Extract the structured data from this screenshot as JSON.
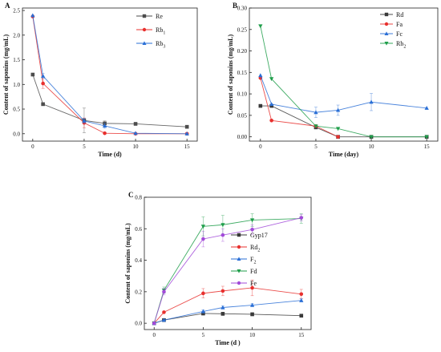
{
  "chart_data": [
    {
      "type": "line",
      "panel_label": "A",
      "xlabel": "Time (d)",
      "ylabel": "Content of saponins (mg/mL)",
      "xlim": [
        -1,
        16
      ],
      "ylim": [
        -0.15,
        2.55
      ],
      "xticks": [
        0,
        5,
        10,
        15
      ],
      "yticks": [
        0.0,
        0.5,
        1.0,
        1.5,
        2.0,
        2.5
      ],
      "ytick_labels": [
        "0.0",
        "0.5",
        "1.0",
        "1.5",
        "2.0",
        "2.5"
      ],
      "legend_position": "top-right",
      "series": [
        {
          "name": "Re",
          "legend_sub": "",
          "color": "#4d4d4d",
          "marker": "square",
          "x": [
            0,
            1,
            5,
            7,
            10,
            15
          ],
          "y": [
            1.2,
            0.6,
            0.27,
            0.21,
            0.2,
            0.14
          ],
          "err": [
            0,
            0,
            0.25,
            0.05,
            0,
            0
          ]
        },
        {
          "name": "Rb",
          "legend_sub": "1",
          "color": "#e8302e",
          "marker": "circle",
          "x": [
            0,
            1,
            5,
            7,
            10,
            15
          ],
          "y": [
            2.38,
            1.02,
            0.22,
            0.01,
            0.0,
            0.0
          ],
          "err": [
            0,
            0.1,
            0.1,
            0,
            0,
            0
          ]
        },
        {
          "name": "Rb",
          "legend_sub": "3",
          "color": "#2a6fd6",
          "marker": "triangle",
          "x": [
            0,
            1,
            5,
            7,
            10,
            15
          ],
          "y": [
            2.4,
            1.17,
            0.26,
            0.16,
            0.01,
            0.0
          ],
          "err": [
            0,
            0.05,
            0.05,
            0.05,
            0,
            0
          ]
        }
      ]
    },
    {
      "type": "line",
      "panel_label": "B",
      "xlabel": "Time (day)",
      "ylabel": "Content of saponins (mg/mL)",
      "xlim": [
        -1,
        16
      ],
      "ylim": [
        -0.01,
        0.3
      ],
      "xticks": [
        0,
        5,
        10,
        15
      ],
      "yticks": [
        0.0,
        0.05,
        0.1,
        0.15,
        0.2,
        0.25,
        0.3
      ],
      "ytick_labels": [
        "0.00",
        "0.05",
        "0.10",
        "0.15",
        "0.20",
        "0.25",
        "0.30"
      ],
      "legend_position": "top-right",
      "series": [
        {
          "name": "Rd",
          "legend_sub": "",
          "color": "#3a3a3a",
          "marker": "square",
          "x": [
            0,
            1,
            5,
            7,
            10,
            15
          ],
          "y": [
            0.072,
            0.072,
            0.022,
            0.0,
            0.0,
            0.0
          ],
          "err": [
            0,
            0,
            0,
            0,
            0,
            0
          ]
        },
        {
          "name": "Fa",
          "legend_sub": "",
          "color": "#e8302e",
          "marker": "circle",
          "x": [
            0,
            1,
            5,
            7
          ],
          "y": [
            0.137,
            0.038,
            0.025,
            0.0
          ],
          "err": [
            0,
            0,
            0,
            0
          ]
        },
        {
          "name": "Fc",
          "legend_sub": "",
          "color": "#2a6fd6",
          "marker": "triangle",
          "x": [
            0,
            1,
            5,
            7,
            10,
            15
          ],
          "y": [
            0.143,
            0.076,
            0.057,
            0.062,
            0.081,
            0.067
          ],
          "err": [
            0,
            0,
            0.012,
            0.012,
            0.02,
            0
          ]
        },
        {
          "name": "Rb",
          "legend_sub": "2",
          "color": "#1f9e4a",
          "marker": "triangle-down",
          "x": [
            0,
            1,
            5,
            7,
            10,
            15
          ],
          "y": [
            0.258,
            0.135,
            0.025,
            0.019,
            0.0,
            0.0
          ],
          "err": [
            0,
            0,
            0,
            0,
            0,
            0
          ]
        }
      ]
    },
    {
      "type": "line",
      "panel_label": "C",
      "xlabel": "Time (d )",
      "ylabel": "Content of saponins (mg/mL)",
      "xlim": [
        -1,
        16
      ],
      "ylim": [
        -0.04,
        0.8
      ],
      "xticks": [
        0,
        5,
        10,
        15
      ],
      "yticks": [
        0.0,
        0.2,
        0.4,
        0.6,
        0.8
      ],
      "ytick_labels": [
        "0.0",
        "0.2",
        "0.4",
        "0.6",
        "0.8"
      ],
      "legend_position": "center-right",
      "series": [
        {
          "name": "Gyp17",
          "legend_sub": "",
          "color": "#3a3a3a",
          "marker": "square",
          "x": [
            0,
            1,
            5,
            7,
            10,
            15
          ],
          "y": [
            0.0,
            0.02,
            0.062,
            0.06,
            0.057,
            0.048
          ],
          "err": [
            0,
            0,
            0.01,
            0.01,
            0.01,
            0.005
          ]
        },
        {
          "name": "Rd",
          "legend_sub": "2",
          "color": "#e8302e",
          "marker": "circle",
          "x": [
            0,
            1,
            5,
            7,
            10,
            15
          ],
          "y": [
            0.0,
            0.07,
            0.19,
            0.205,
            0.225,
            0.185
          ],
          "err": [
            0,
            0,
            0.03,
            0.03,
            0.05,
            0.03
          ]
        },
        {
          "name": "F",
          "legend_sub": "2",
          "color": "#2a6fd6",
          "marker": "triangle",
          "x": [
            0,
            1,
            5,
            7,
            10,
            15
          ],
          "y": [
            0.0,
            0.02,
            0.075,
            0.1,
            0.115,
            0.145
          ],
          "err": [
            0,
            0,
            0.01,
            0.01,
            0.01,
            0.01
          ]
        },
        {
          "name": "Fd",
          "legend_sub": "",
          "color": "#1f9e4a",
          "marker": "triangle-down",
          "x": [
            0,
            1,
            5,
            7,
            10,
            15
          ],
          "y": [
            0.0,
            0.21,
            0.615,
            0.625,
            0.655,
            0.665
          ],
          "err": [
            0,
            0.02,
            0.06,
            0.06,
            0.04,
            0.03
          ]
        },
        {
          "name": "Fe",
          "legend_sub": "",
          "color": "#a24bd9",
          "marker": "circle",
          "x": [
            0,
            1,
            5,
            7,
            10,
            15
          ],
          "y": [
            0.0,
            0.2,
            0.535,
            0.56,
            0.595,
            0.67
          ],
          "err": [
            0,
            0.02,
            0.05,
            0.04,
            0.03,
            0.02
          ]
        }
      ]
    }
  ]
}
